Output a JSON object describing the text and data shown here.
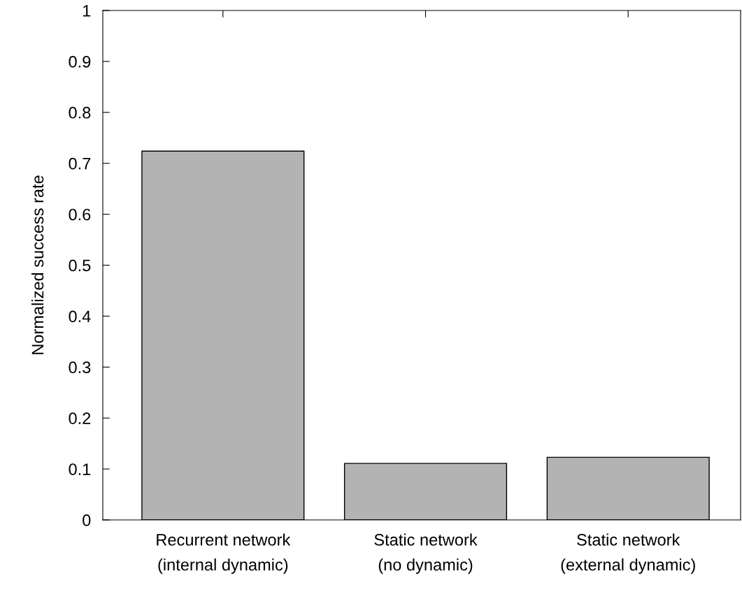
{
  "chart_data": {
    "type": "bar",
    "ylabel": "Normalized success rate",
    "categories": [
      "Recurrent network\n(internal dynamic)",
      "Static network\n(no dynamic)",
      "Static network\n(external dynamic)"
    ],
    "values": [
      0.724,
      0.111,
      0.123
    ],
    "color": "#b3b3b3",
    "ylim": [
      0,
      1
    ],
    "yticks": [
      0,
      0.1,
      0.2,
      0.3,
      0.4,
      0.5,
      0.6,
      0.7,
      0.8,
      0.9,
      1
    ],
    "grid": false,
    "legend": false
  }
}
